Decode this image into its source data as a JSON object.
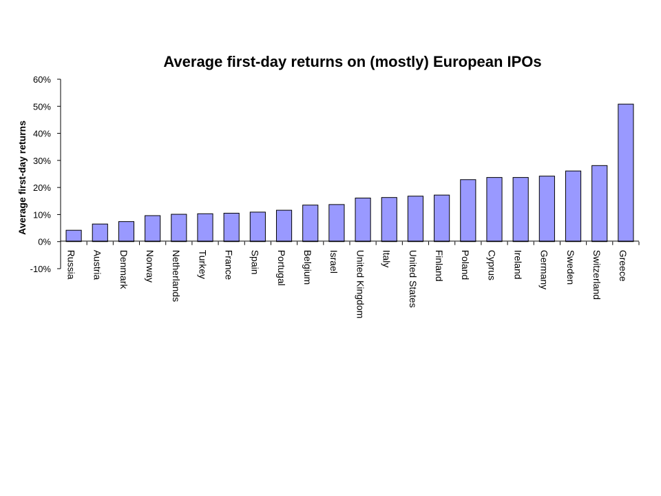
{
  "chart_data": {
    "type": "bar",
    "title": "Average first-day returns on (mostly) European IPOs",
    "xlabel": "",
    "ylabel": "Average first-day returns",
    "ylim": [
      -10,
      60
    ],
    "yticks": [
      "-10%",
      "0%",
      "10%",
      "20%",
      "30%",
      "40%",
      "50%",
      "60%"
    ],
    "ytick_values": [
      -10,
      0,
      10,
      20,
      30,
      40,
      50,
      60
    ],
    "categories": [
      "Russia",
      "Austria",
      "Denmark",
      "Norway",
      "Netherlands",
      "Turkey",
      "France",
      "Spain",
      "Portugal",
      "Belgium",
      "Israel",
      "United Kingdom",
      "Italy",
      "United States",
      "Finland",
      "Poland",
      "Cyprus",
      "Ireland",
      "Germany",
      "Sweden",
      "Switzerland",
      "Greece"
    ],
    "values": [
      4.2,
      6.5,
      7.4,
      9.6,
      10.1,
      10.3,
      10.5,
      10.9,
      11.6,
      13.5,
      13.7,
      16.1,
      16.3,
      16.8,
      17.2,
      22.9,
      23.7,
      23.7,
      24.2,
      26.1,
      28.1,
      50.8
    ],
    "grid": false,
    "legend": "none",
    "colors": {
      "bar": "#9999ff",
      "outline": "#000000"
    }
  }
}
